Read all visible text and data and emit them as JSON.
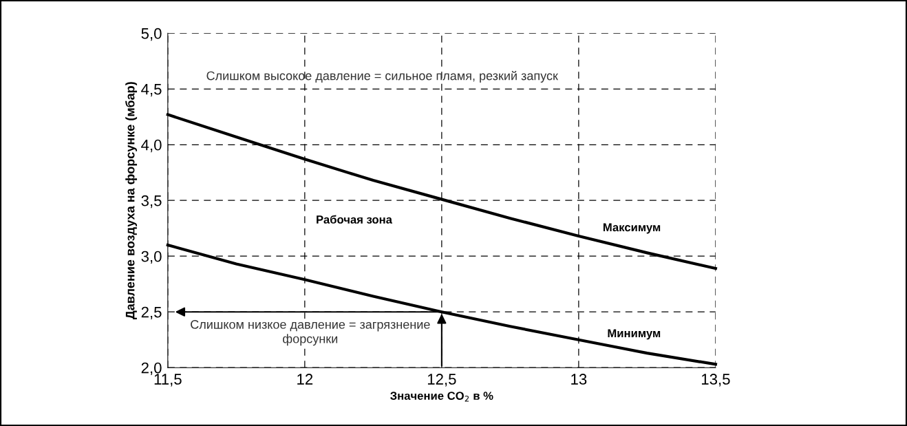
{
  "chart_data": {
    "type": "line",
    "xlabel": "Значение CO$_{2}$ в %",
    "ylabel": "Давление воздуха на форсунке (мбар)",
    "x": [
      11.5,
      11.75,
      12,
      12.25,
      12.5,
      12.75,
      13,
      13.25,
      13.5
    ],
    "series": [
      {
        "name": "Максимум",
        "color": "#000000",
        "values": [
          4.27,
          4.07,
          3.87,
          3.68,
          3.51,
          3.34,
          3.18,
          3.03,
          2.89
        ]
      },
      {
        "name": "Минимум",
        "color": "#000000",
        "values": [
          3.1,
          2.93,
          2.79,
          2.64,
          2.5,
          2.37,
          2.25,
          2.13,
          2.03
        ]
      }
    ],
    "xlim": [
      11.5,
      13.5
    ],
    "ylim": [
      2.0,
      5.0
    ],
    "xticks": [
      {
        "value": 11.5,
        "label": "11,5"
      },
      12,
      {
        "value": 12.5,
        "label": "12,5"
      },
      13,
      {
        "value": 13.5,
        "label": "13,5"
      }
    ],
    "yticks": [
      {
        "value": 2.0,
        "label": "2,0"
      },
      {
        "value": 2.5,
        "label": "2,5"
      },
      {
        "value": 3.0,
        "label": "3,0"
      },
      {
        "value": 3.5,
        "label": "3,5"
      },
      {
        "value": 4.0,
        "label": "4,0"
      },
      {
        "value": 4.5,
        "label": "4,5"
      },
      {
        "value": 5.0,
        "label": "5,0"
      }
    ],
    "grid": true,
    "line_style": "solid",
    "marker": "none",
    "annotations": [
      "Слишком высокое давление = сильное пламя, резкий запуск",
      "Рабочая зона",
      {
        "text": "Слишком низкое давление = загрязнение\nфорсунки",
        "x": 12.5,
        "y": 2.5
      }
    ]
  }
}
